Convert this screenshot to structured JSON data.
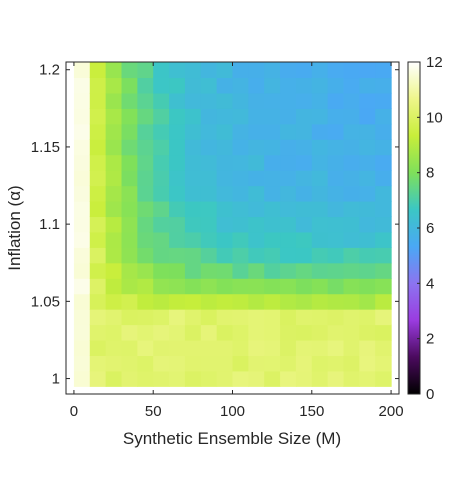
{
  "chart_data": {
    "type": "heatmap",
    "xlabel": "Synthetic Ensemble Size (M)",
    "ylabel": "Inflation (α)",
    "xlim": [
      -5,
      205
    ],
    "ylim": [
      0.99,
      1.205
    ],
    "x_ticks": [
      0,
      50,
      100,
      150,
      200
    ],
    "x_tick_labels": [
      "0",
      "50",
      "100",
      "150",
      "200"
    ],
    "y_ticks": [
      1,
      1.05,
      1.1,
      1.15,
      1.2
    ],
    "y_tick_labels": [
      "1",
      "1.05",
      "1.1",
      "1.15",
      "1.2"
    ],
    "x": [
      5,
      15,
      25,
      35,
      45,
      55,
      65,
      75,
      85,
      95,
      105,
      115,
      125,
      135,
      145,
      155,
      165,
      175,
      185,
      195
    ],
    "y": [
      1.0,
      1.01,
      1.02,
      1.03,
      1.04,
      1.05,
      1.06,
      1.07,
      1.08,
      1.09,
      1.1,
      1.11,
      1.12,
      1.13,
      1.14,
      1.15,
      1.16,
      1.17,
      1.18,
      1.19,
      1.2
    ],
    "z_formula": "approx. 11.6 at M=5; otherwise 10.2 - 4.7*(1-exp(-(M-10)/35))*(1-exp(-max(0, alpha-1.04)/0.03))",
    "colorbar": {
      "min": 0,
      "max": 12,
      "ticks": [
        0,
        2,
        4,
        6,
        8,
        10,
        12
      ],
      "tick_labels": [
        "0",
        "2",
        "4",
        "6",
        "8",
        "10",
        "12"
      ],
      "colormap": [
        "#000000",
        "#4b0a5e",
        "#9a3ce0",
        "#8c74f0",
        "#4aa8f5",
        "#3bc7c4",
        "#7fe05a",
        "#c8ee3a",
        "#eef68a",
        "#ffffff"
      ]
    },
    "grid": false
  }
}
